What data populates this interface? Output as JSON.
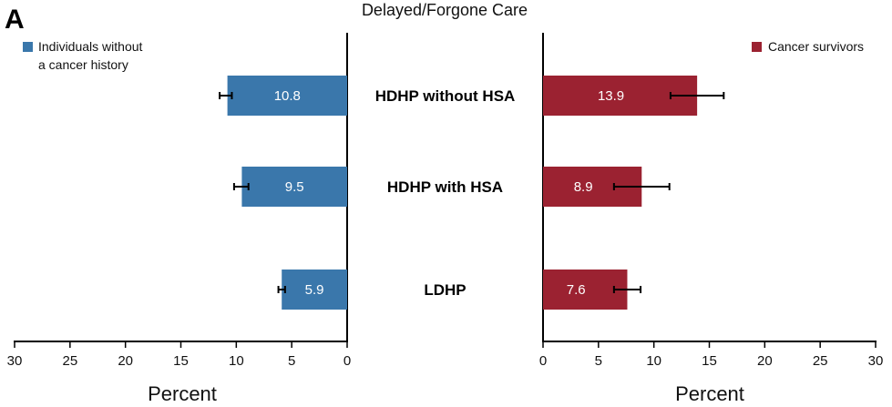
{
  "panel_letter": "A",
  "chart_data": {
    "type": "bar",
    "orientation": "horizontal",
    "layout": "back-to-back",
    "title": "Delayed/Forgone Care",
    "categories": [
      "HDHP without HSA",
      "HDHP with HSA",
      "LDHP"
    ],
    "xlabel_left": "Percent",
    "xlabel_right": "Percent",
    "xlim": [
      0,
      30
    ],
    "xticks": [
      "0",
      "5",
      "10",
      "15",
      "20",
      "25",
      "30"
    ],
    "grid": false,
    "series": [
      {
        "name": "Individuals without a cancer history",
        "legend_lines": [
          "Individuals without",
          "a cancer history"
        ],
        "legend_position": "top-left",
        "side": "left",
        "color": "#3a77ab",
        "values": [
          10.8,
          9.5,
          5.9
        ],
        "labels": [
          "10.8",
          "9.5",
          "5.9"
        ],
        "ci_low": [
          10.4,
          8.9,
          5.6
        ],
        "ci_high": [
          11.5,
          10.2,
          6.2
        ]
      },
      {
        "name": "Cancer survivors",
        "legend_lines": [
          "Cancer survivors"
        ],
        "legend_position": "top-right",
        "side": "right",
        "color": "#9b2231",
        "values": [
          13.9,
          8.9,
          7.6
        ],
        "labels": [
          "13.9",
          "8.9",
          "7.6"
        ],
        "ci_low": [
          11.5,
          6.4,
          6.4
        ],
        "ci_high": [
          16.3,
          11.4,
          8.8
        ]
      }
    ]
  }
}
